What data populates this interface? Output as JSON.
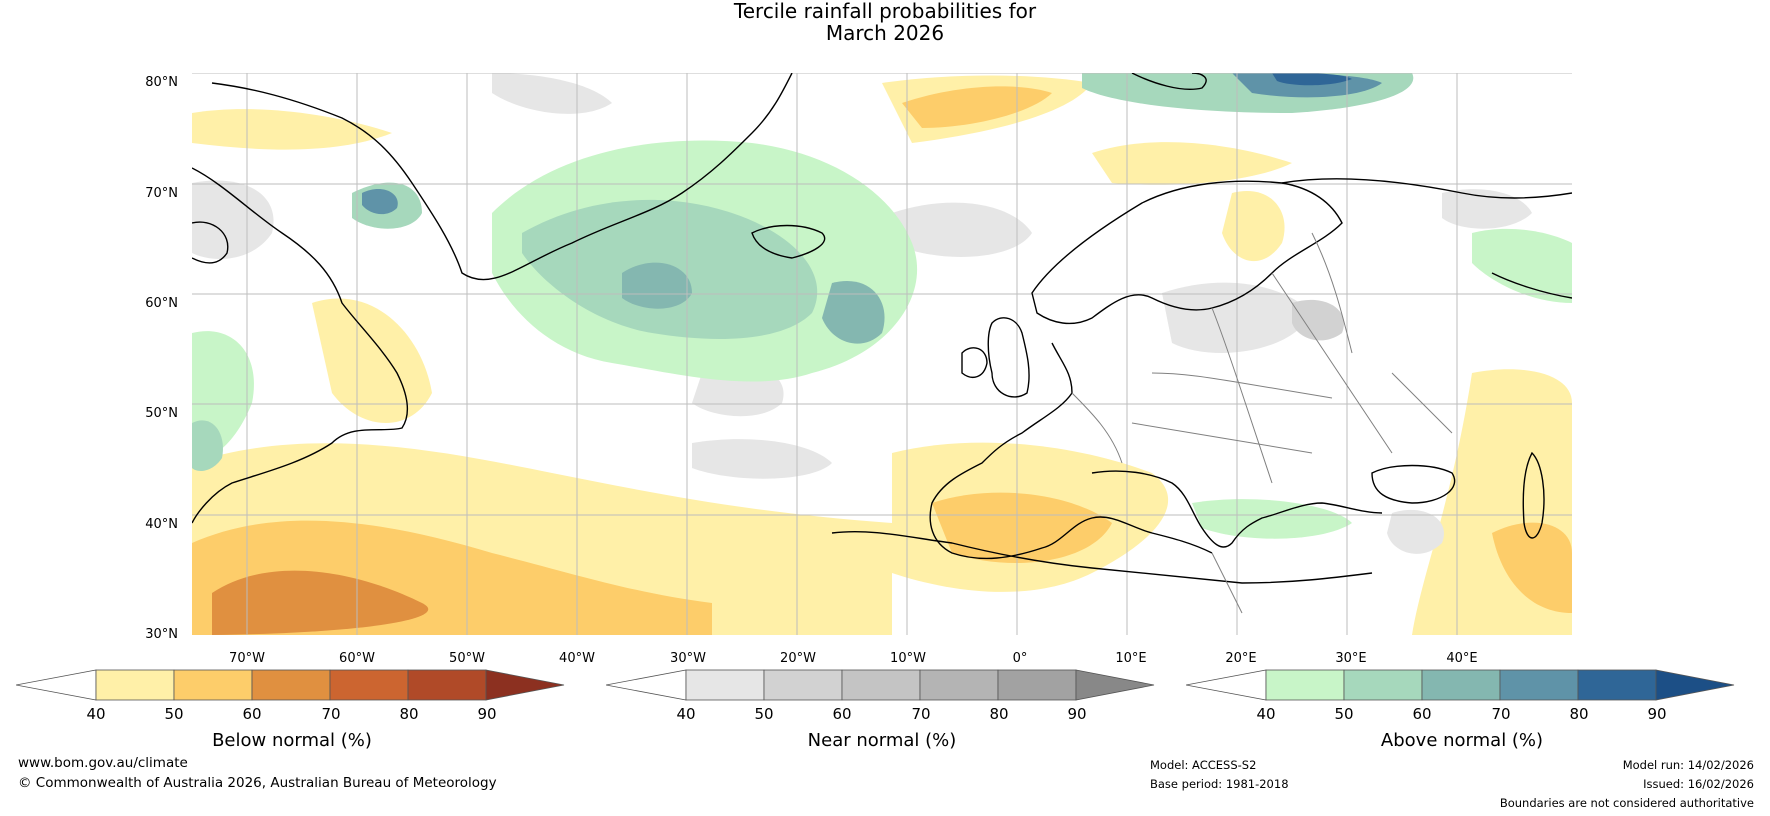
{
  "title": {
    "line1": "Tercile rainfall probabilities for",
    "line2": "March 2026"
  },
  "lat_labels": [
    "80°N",
    "70°N",
    "60°N",
    "50°N",
    "40°N",
    "30°N"
  ],
  "lon_labels": [
    "70°W",
    "60°W",
    "50°W",
    "40°W",
    "30°W",
    "20°W",
    "10°W",
    "0°",
    "10°E",
    "20°E",
    "30°E",
    "40°E"
  ],
  "colorbars": [
    {
      "label": "Below normal (%)",
      "ticks": [
        "40",
        "50",
        "60",
        "70",
        "80",
        "90"
      ],
      "colors": [
        "#fff0a8",
        "#fdcd6a",
        "#e09040",
        "#cc6530",
        "#b04a28",
        "#8c3020"
      ]
    },
    {
      "label": "Near normal (%)",
      "ticks": [
        "40",
        "50",
        "60",
        "70",
        "80",
        "90"
      ],
      "colors": [
        "#e6e6e6",
        "#d2d2d2",
        "#c4c4c4",
        "#b4b4b4",
        "#a2a2a2",
        "#888888"
      ]
    },
    {
      "label": "Above normal (%)",
      "ticks": [
        "40",
        "50",
        "60",
        "70",
        "80",
        "90"
      ],
      "colors": [
        "#c8f5c8",
        "#a6d8bc",
        "#84b7b0",
        "#5f93a8",
        "#2f6697",
        "#1c4f86"
      ]
    }
  ],
  "footer": {
    "website": "www.bom.gov.au/climate",
    "copyright": "© Commonwealth of Australia 2026, Australian Bureau of Meteorology",
    "model": "Model: ACCESS-S2",
    "base_period": "Base period: 1981-2018",
    "model_run": "Model run: 14/02/2026",
    "issued": "Issued: 16/02/2026",
    "disclaimer": "Boundaries are not considered authoritative"
  }
}
